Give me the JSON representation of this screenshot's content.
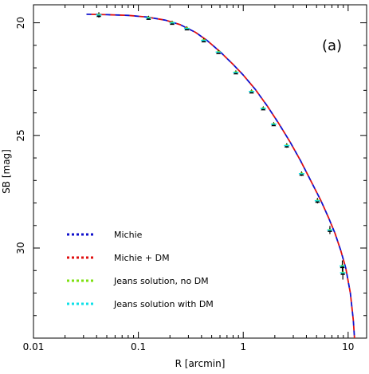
{
  "chart_data": {
    "type": "line",
    "panel_label": "(a)",
    "xlabel": "R [arcmin]",
    "ylabel": "SB [mag]",
    "xscale": "log",
    "xlim": [
      0.01,
      15
    ],
    "ylim": [
      34,
      19.2
    ],
    "y_inverted": true,
    "x_ticks": [
      {
        "value": 0.01,
        "label": "0.01"
      },
      {
        "value": 0.1,
        "label": "0.1"
      },
      {
        "value": 1,
        "label": "1"
      },
      {
        "value": 10,
        "label": "10"
      }
    ],
    "y_ticks": [
      {
        "value": 20,
        "label": "20"
      },
      {
        "value": 25,
        "label": "25"
      },
      {
        "value": 30,
        "label": "30"
      }
    ],
    "legend_position": "bottom-left",
    "series": [
      {
        "name": "Michie",
        "color": "#1010cc",
        "style": "dashed",
        "x": [
          0.032,
          0.05,
          0.08,
          0.12,
          0.18,
          0.25,
          0.35,
          0.45,
          0.6,
          0.8,
          1.0,
          1.3,
          1.7,
          2.2,
          2.8,
          3.5,
          4.5,
          5.5,
          6.5,
          7.5,
          8.5,
          9.5,
          10.5,
          11.2,
          11.5
        ],
        "y": [
          19.62,
          19.64,
          19.67,
          19.74,
          19.88,
          20.08,
          20.42,
          20.78,
          21.28,
          21.85,
          22.32,
          22.95,
          23.7,
          24.5,
          25.3,
          26.1,
          27.1,
          27.9,
          28.65,
          29.35,
          30.1,
          30.9,
          32.0,
          33.2,
          34.0
        ]
      },
      {
        "name": "Michie + DM",
        "color": "#e01010",
        "style": "dashed",
        "x": [
          0.032,
          0.05,
          0.08,
          0.12,
          0.18,
          0.25,
          0.35,
          0.45,
          0.6,
          0.8,
          1.0,
          1.3,
          1.7,
          2.2,
          2.8,
          3.5,
          4.5,
          5.5,
          6.5,
          7.5,
          8.5,
          9.5,
          10.5,
          11.2,
          11.5
        ],
        "y": [
          19.62,
          19.64,
          19.67,
          19.74,
          19.88,
          20.08,
          20.42,
          20.78,
          21.28,
          21.85,
          22.32,
          22.95,
          23.7,
          24.5,
          25.3,
          26.1,
          27.1,
          27.9,
          28.65,
          29.35,
          30.1,
          30.9,
          32.0,
          33.2,
          34.0
        ]
      },
      {
        "name": "Jeans solution, no DM",
        "color": "#7de010",
        "style": "dotted",
        "x": [],
        "y": []
      },
      {
        "name": "Jeans solution with DM",
        "color": "#10e0e8",
        "style": "dotted",
        "x": [],
        "y": []
      }
    ],
    "observations": {
      "marker": "triangle",
      "x": [
        0.042,
        0.125,
        0.21,
        0.29,
        0.42,
        0.58,
        0.85,
        1.2,
        1.55,
        1.95,
        2.6,
        3.6,
        5.1,
        6.7,
        8.8,
        8.9
      ],
      "y": [
        19.65,
        19.78,
        20.0,
        20.25,
        20.78,
        21.3,
        22.2,
        23.05,
        23.8,
        24.5,
        25.45,
        26.7,
        27.9,
        29.2,
        30.8,
        31.1
      ],
      "err": [
        0.12,
        0.08,
        0.06,
        0.05,
        0.06,
        0.06,
        0.06,
        0.06,
        0.06,
        0.06,
        0.1,
        0.1,
        0.12,
        0.18,
        0.25,
        0.3
      ]
    }
  }
}
